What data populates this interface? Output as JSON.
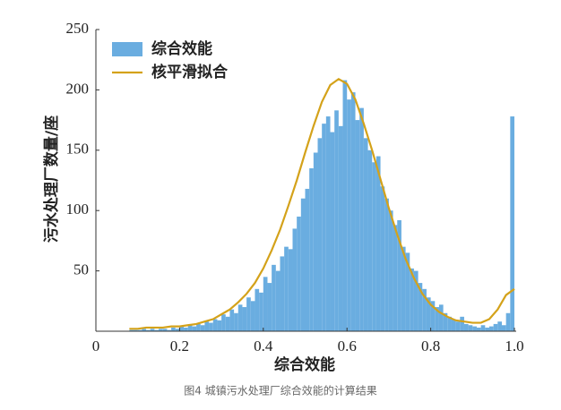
{
  "chart_data": {
    "type": "histogram",
    "caption": "图4 城镇污水处理厂综合效能的计算结果",
    "xlabel": "综合效能",
    "ylabel": "污水处理厂数量/座",
    "xlim": [
      0,
      1
    ],
    "ylim": [
      0,
      250
    ],
    "xticks": [
      0,
      0.2,
      0.4,
      0.6,
      0.8,
      {
        "value": 1,
        "label": "1.0"
      }
    ],
    "yticks": [
      50,
      100,
      150,
      200,
      250
    ],
    "legend": "upper-left",
    "series": [
      {
        "name": "综合效能",
        "type": "histogram",
        "color": "#6aade0",
        "bins": [
          0.08,
          0.09,
          0.1,
          0.11,
          0.12,
          0.13,
          0.14,
          0.15,
          0.16,
          0.17,
          0.18,
          0.19,
          0.2,
          0.21,
          0.22,
          0.23,
          0.24,
          0.25,
          0.26,
          0.27,
          0.28,
          0.29,
          0.3,
          0.31,
          0.32,
          0.33,
          0.34,
          0.35,
          0.36,
          0.37,
          0.38,
          0.39,
          0.4,
          0.41,
          0.42,
          0.43,
          0.44,
          0.45,
          0.46,
          0.47,
          0.48,
          0.49,
          0.5,
          0.51,
          0.52,
          0.53,
          0.54,
          0.55,
          0.56,
          0.57,
          0.58,
          0.59,
          0.6,
          0.61,
          0.62,
          0.63,
          0.64,
          0.65,
          0.66,
          0.67,
          0.68,
          0.69,
          0.7,
          0.71,
          0.72,
          0.73,
          0.74,
          0.75,
          0.76,
          0.77,
          0.78,
          0.79,
          0.8,
          0.81,
          0.82,
          0.83,
          0.84,
          0.85,
          0.86,
          0.87,
          0.88,
          0.89,
          0.9,
          0.91,
          0.92,
          0.93,
          0.94,
          0.95,
          0.96,
          0.97,
          0.98,
          0.99,
          1.0
        ],
        "values": [
          1,
          1,
          1,
          2,
          1,
          2,
          1,
          2,
          2,
          1,
          3,
          2,
          4,
          3,
          5,
          4,
          6,
          5,
          8,
          7,
          10,
          9,
          14,
          12,
          18,
          15,
          22,
          20,
          28,
          25,
          35,
          32,
          45,
          40,
          55,
          50,
          62,
          70,
          68,
          85,
          95,
          110,
          118,
          135,
          148,
          160,
          172,
          178,
          165,
          183,
          170,
          208,
          192,
          198,
          175,
          185,
          160,
          150,
          140,
          145,
          120,
          110,
          100,
          88,
          92,
          70,
          65,
          52,
          50,
          40,
          35,
          28,
          25,
          20,
          22,
          15,
          12,
          10,
          8,
          12,
          6,
          5,
          4,
          3,
          5,
          3,
          4,
          6,
          8,
          5,
          15,
          178
        ]
      },
      {
        "name": "核平滑拟合",
        "type": "line",
        "color": "#d4a21a",
        "x": [
          0.08,
          0.1,
          0.12,
          0.14,
          0.16,
          0.18,
          0.2,
          0.22,
          0.24,
          0.26,
          0.28,
          0.3,
          0.32,
          0.34,
          0.36,
          0.38,
          0.4,
          0.42,
          0.44,
          0.46,
          0.48,
          0.5,
          0.52,
          0.54,
          0.56,
          0.58,
          0.6,
          0.62,
          0.64,
          0.66,
          0.68,
          0.7,
          0.72,
          0.74,
          0.76,
          0.78,
          0.8,
          0.82,
          0.84,
          0.86,
          0.88,
          0.9,
          0.92,
          0.94,
          0.96,
          0.98,
          1.0
        ],
        "values": [
          2,
          2,
          3,
          3,
          3,
          4,
          4,
          5,
          6,
          8,
          10,
          14,
          18,
          24,
          31,
          40,
          52,
          67,
          84,
          104,
          125,
          148,
          170,
          190,
          204,
          209,
          205,
          192,
          172,
          150,
          126,
          102,
          80,
          60,
          44,
          31,
          22,
          16,
          12,
          9,
          8,
          7,
          7,
          10,
          18,
          30,
          35
        ]
      }
    ]
  }
}
